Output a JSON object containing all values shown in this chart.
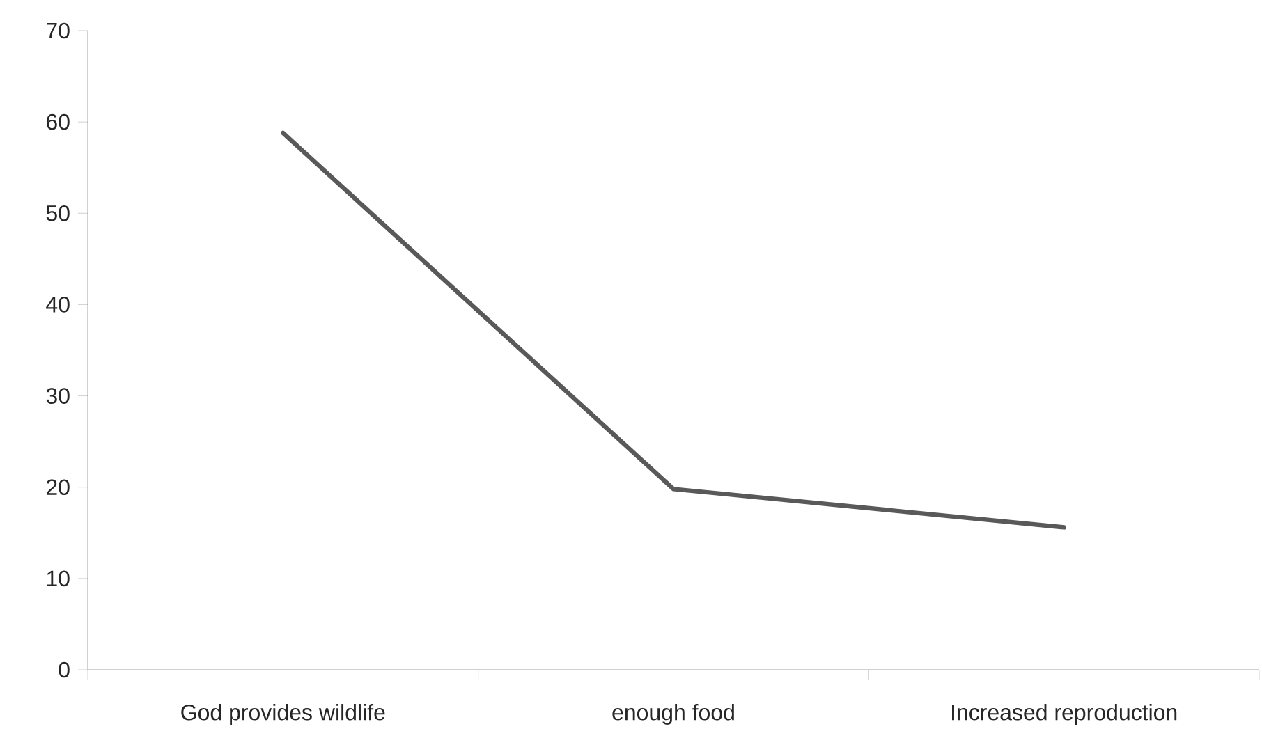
{
  "chart_data": {
    "type": "line",
    "categories": [
      "God provides wildlife",
      "enough food",
      "Increased reproduction"
    ],
    "series": [
      {
        "color": "#595959",
        "values": [
          58.8,
          19.8,
          15.6
        ]
      }
    ],
    "ylim": [
      0,
      70
    ],
    "yticks": [
      0,
      10,
      20,
      30,
      40,
      50,
      60,
      70
    ],
    "grid": false,
    "marker": "none",
    "line_style": "solid"
  }
}
